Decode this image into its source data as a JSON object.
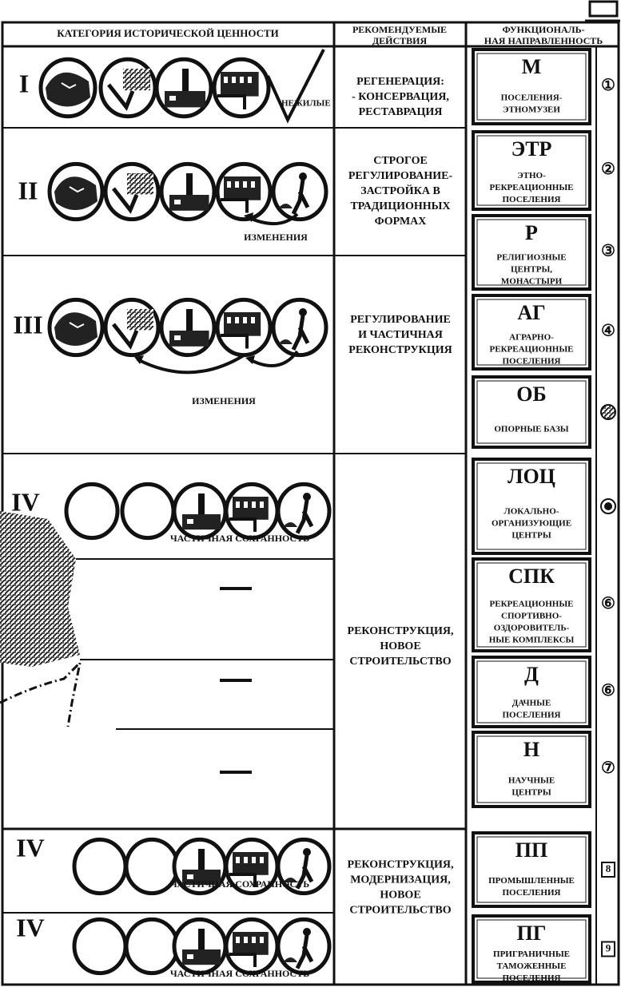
{
  "header": {
    "category": "КАТЕГОРИЯ ИСТОРИЧЕСКОЙ ЦЕННОСТИ",
    "actions": [
      "РЕКОМЕНДУЕМЫЕ",
      "ДЕЙСТВИЯ"
    ],
    "functions": [
      "ФУНКЦИОНАЛЬ-",
      "НАЯ НАПРАВЛЕННОСТЬ"
    ]
  },
  "categories": [
    {
      "numeral": "I",
      "note": "НЕЖИЛЫЕ"
    },
    {
      "numeral": "II",
      "note": "ИЗМЕНЕНИЯ"
    },
    {
      "numeral": "III",
      "note": "ИЗМЕНЕНИЯ"
    },
    {
      "numeral": "IV",
      "note": "ЧАСТИЧНАЯ СОХРАННОСТЬ"
    },
    {
      "numeral": "IV",
      "note": "ЧАСТИЧНАЯ СОХРАННОСТЬ"
    },
    {
      "numeral": "IV",
      "note": "ЧАСТИЧНАЯ СОХРАННОСТЬ"
    }
  ],
  "actions": [
    {
      "lines": [
        "РЕГЕНЕРАЦИЯ:",
        "- КОНСЕРВАЦИЯ,",
        "РЕСТАВРАЦИЯ"
      ]
    },
    {
      "lines": [
        "СТРОГОЕ",
        "РЕГУЛИРОВАНИЕ-",
        "ЗАСТРОЙКА В",
        "ТРАДИЦИОННЫХ",
        "ФОРМАХ"
      ]
    },
    {
      "lines": [
        "РЕГУЛИРОВАНИЕ",
        "И ЧАСТИЧНАЯ",
        "РЕКОНСТРУКЦИЯ"
      ]
    },
    {
      "lines": [
        "РЕКОНСТРУКЦИЯ,",
        "НОВОЕ",
        "СТРОИТЕЛЬСТВО"
      ]
    },
    {
      "lines": [
        "РЕКОНСТРУКЦИЯ,",
        "МОДЕРНИЗАЦИЯ,",
        "НОВОЕ",
        "СТРОИТЕЛЬСТВО"
      ]
    }
  ],
  "functions": [
    {
      "code": "М",
      "lines": [
        "ПОСЕЛЕНИЯ-",
        "ЭТНОМУЗЕИ"
      ],
      "marker": "①"
    },
    {
      "code": "ЭТР",
      "lines": [
        "ЭТНО-",
        "РЕКРЕАЦИОННЫЕ",
        "ПОСЕЛЕНИЯ"
      ],
      "marker": "②"
    },
    {
      "code": "Р",
      "lines": [
        "РЕЛИГИОЗНЫЕ",
        "ЦЕНТРЫ,",
        "МОНАСТЫРИ"
      ],
      "marker": "③"
    },
    {
      "code": "АГ",
      "lines": [
        "АГРАРНО-",
        "РЕКРЕАЦИОННЫЕ",
        "ПОСЕЛЕНИЯ"
      ],
      "marker": "④"
    },
    {
      "code": "ОБ",
      "lines": [
        "ОПОРНЫЕ БАЗЫ"
      ]
    },
    {
      "code": "ЛОЦ",
      "lines": [
        "ЛОКАЛЬНО-",
        "ОРГАНИЗУЮЩИЕ",
        "ЦЕНТРЫ"
      ]
    },
    {
      "code": "СПК",
      "lines": [
        "РЕКРЕАЦИОННЫЕ",
        "СПОРТИВНО-",
        "ОЗДОРОВИТЕЛЬ-",
        "НЫЕ КОМПЛЕКСЫ"
      ],
      "marker": "⑥"
    },
    {
      "code": "Д",
      "lines": [
        "ДАЧНЫЕ",
        "ПОСЕЛЕНИЯ"
      ],
      "marker": "⑥"
    },
    {
      "code": "Н",
      "lines": [
        "НАУЧНЫЕ",
        "ЦЕНТРЫ"
      ],
      "marker": "⑦"
    },
    {
      "code": "ПП",
      "lines": [
        "ПРОМЫШЛЕННЫЕ",
        "ПОСЕЛЕНИЯ"
      ],
      "marker": "8"
    },
    {
      "code": "ПГ",
      "lines": [
        "ПРИГРАНИЧНЫЕ",
        "ТАМОЖЕННЫЕ",
        "ПОСЕЛЕНИЯ"
      ],
      "marker": "9"
    }
  ]
}
